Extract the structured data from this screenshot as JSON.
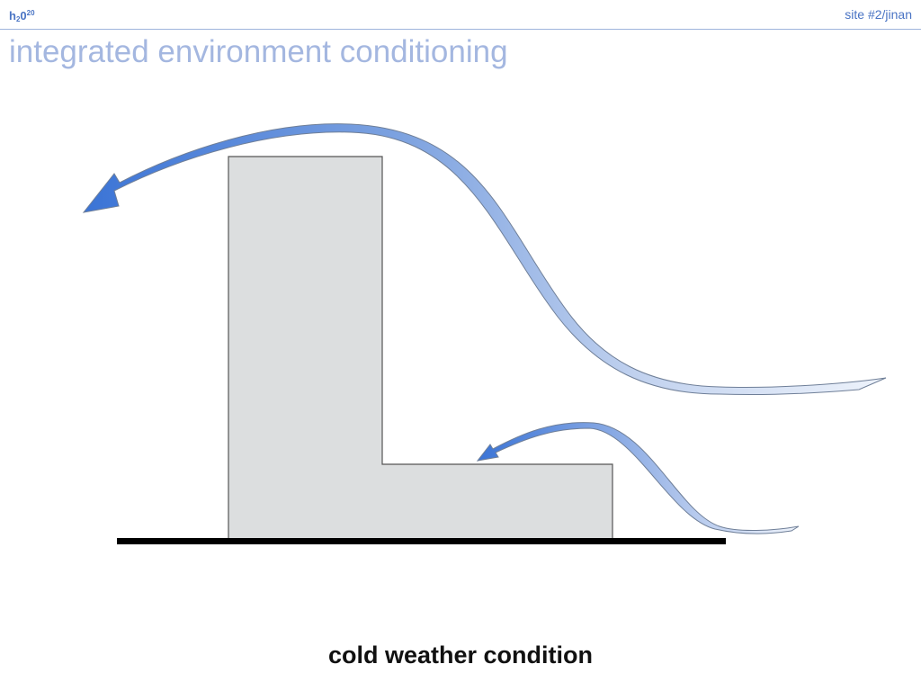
{
  "header": {
    "logo": {
      "base_h": "h",
      "sub": "2",
      "base_o": "0",
      "sup": "20"
    },
    "site": "site #2/jinan"
  },
  "title": "integrated environment conditioning",
  "diagram": {
    "elements": [
      "building",
      "ground-line",
      "upper-airflow-arrow",
      "lower-airflow-arrow"
    ],
    "colors": {
      "building_fill": "#dcdedf",
      "building_stroke": "#555555",
      "arrow_dark": "#3f78d8",
      "arrow_light": "#e4ecf8",
      "ground": "#000000"
    }
  },
  "caption": "cold weather condition"
}
